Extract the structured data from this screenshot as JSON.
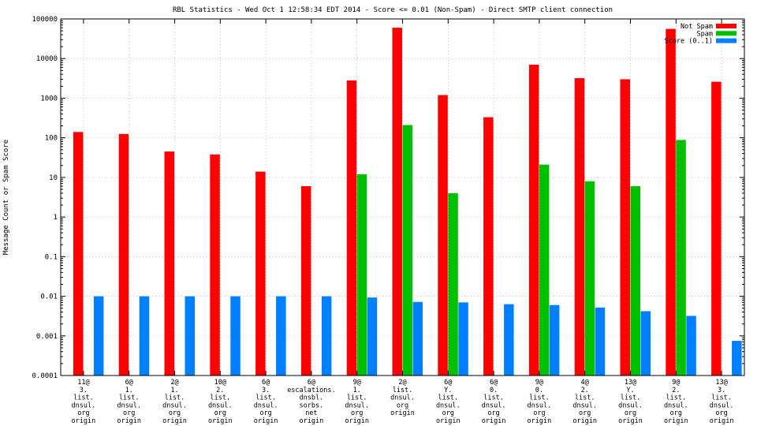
{
  "chart_data": {
    "type": "bar",
    "title": "RBL Statistics - Wed Oct  1 12:58:34 EDT 2014 - Score <= 0.01 (Non-Spam) - Direct SMTP client connection",
    "xlabel": "",
    "ylabel": "Message Count or Spam Score",
    "yscale": "log",
    "ylim": [
      0.0001,
      100000
    ],
    "yticks": [
      "0.0001",
      "0.001",
      "0.01",
      "0.1",
      "1",
      "10",
      "100",
      "1000",
      "10000",
      "100000"
    ],
    "grid": true,
    "legend_position": "top-right",
    "categories": [
      "11@|3.|list.|dnsul.|org|origin",
      "6@|1.|list.|dnsul.|org|origin",
      "2@|1.|list.|dnsul.|org|origin",
      "10@|2.|list.|dnsul.|org|origin",
      "6@|3.|list.|dnsul.|org|origin",
      "6@|escalations.|dnsbl.|sorbs.|net|origin",
      "9@|1.|list.|dnsul.|org|origin",
      "2@|list.|dnsul.|org|origin",
      "6@|Y.|list.|dnsul.|org|origin",
      "6@|0.|list.|dnsul.|org|origin",
      "9@|0.|list.|dnsul.|org|origin",
      "4@|2.|list.|dnsul.|org|origin",
      "13@|Y.|list.|dnsul.|org|origin",
      "9@|2.|list.|dnsul.|org|origin",
      "13@|3.|list.|dnsul.|org|origin"
    ],
    "series": [
      {
        "name": "Not Spam",
        "color": "#ff0000",
        "values": [
          140,
          125,
          45,
          38,
          14,
          6,
          2800,
          60000,
          1200,
          330,
          7000,
          3200,
          3000,
          56000,
          2600
        ]
      },
      {
        "name": "Spam",
        "color": "#00c000",
        "values": [
          null,
          null,
          null,
          null,
          null,
          null,
          12,
          210,
          4,
          null,
          21,
          8,
          6,
          88,
          null
        ]
      },
      {
        "name": "Score (0..1)",
        "color": "#0080ff",
        "values": [
          0.01,
          0.01,
          0.01,
          0.01,
          0.01,
          0.01,
          0.0093,
          0.0072,
          0.007,
          0.0063,
          0.006,
          0.0052,
          0.0042,
          0.0032,
          0.00075
        ]
      }
    ]
  }
}
